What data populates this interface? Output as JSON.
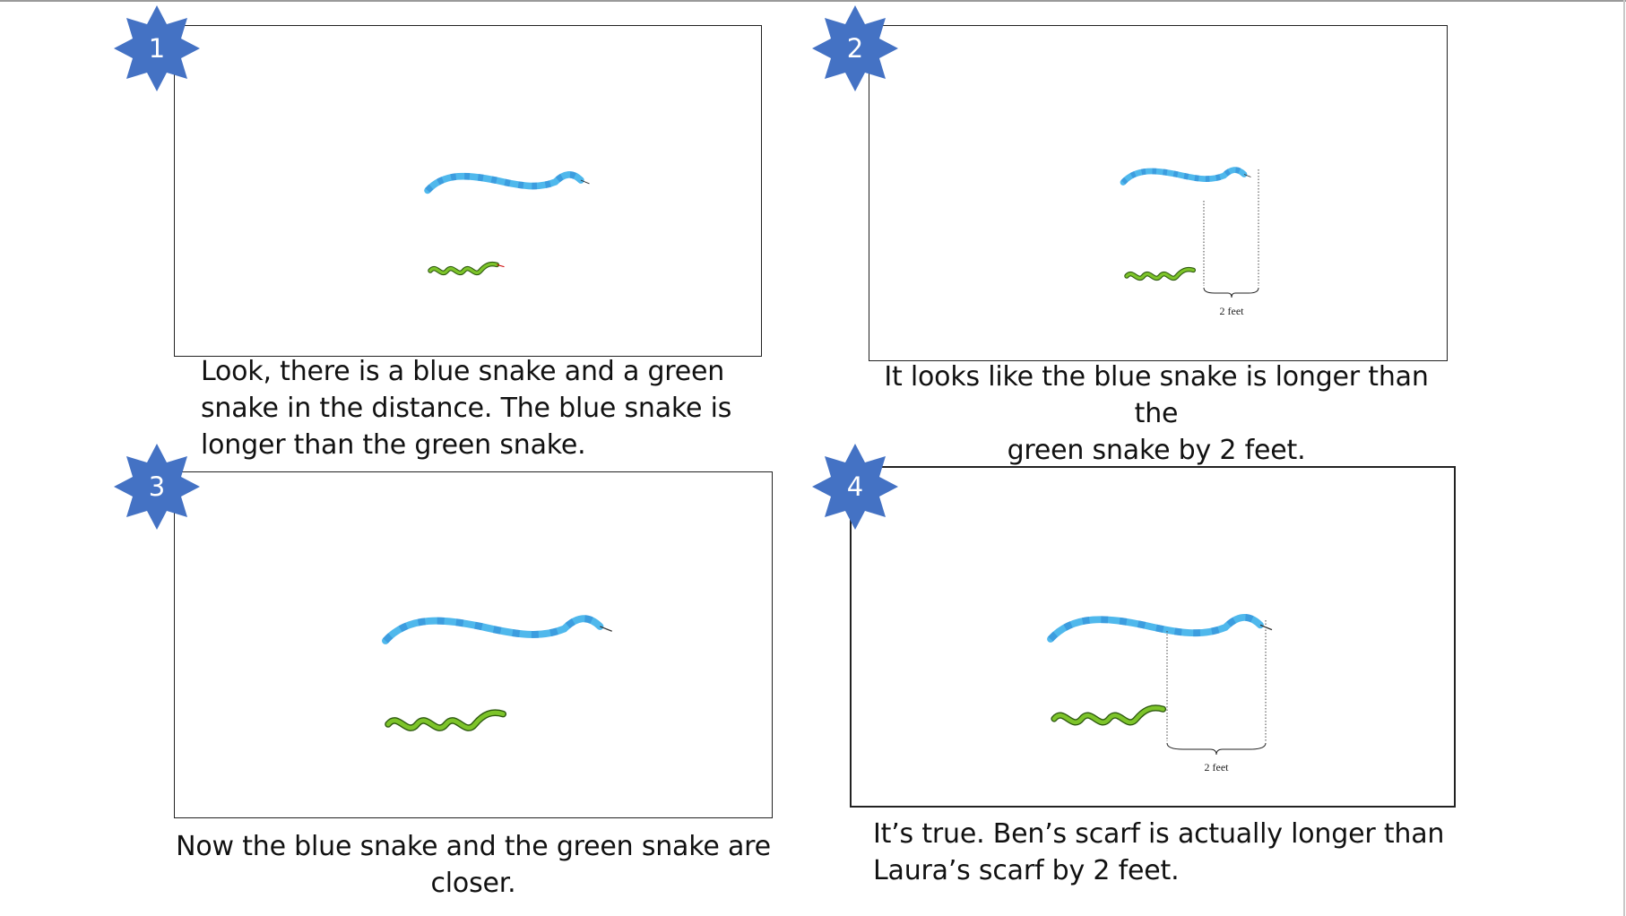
{
  "panels": [
    {
      "number": "1",
      "caption_lines": [
        "Look, there is a blue snake and a green",
        "snake in the distance. The blue snake is",
        "longer than the green snake."
      ]
    },
    {
      "number": "2",
      "caption_lines": [
        "It looks like the blue snake is longer than the",
        "green snake by 2 feet."
      ],
      "dimension_label": "2 feet"
    },
    {
      "number": "3",
      "caption_lines": [
        "Now the blue snake and the green snake are",
        "closer."
      ]
    },
    {
      "number": "4",
      "caption_lines": [
        "It’s true. Ben’s scarf is actually longer than",
        "Laura’s scarf by 2 feet."
      ],
      "dimension_label": "2 feet"
    }
  ],
  "colors": {
    "badge": "#4472C4",
    "blue_snake": "#4FB8EC",
    "blue_snake_stripe": "#2E86D6",
    "green_snake": "#7DC42A",
    "green_snake_edge": "#2E5A10"
  }
}
